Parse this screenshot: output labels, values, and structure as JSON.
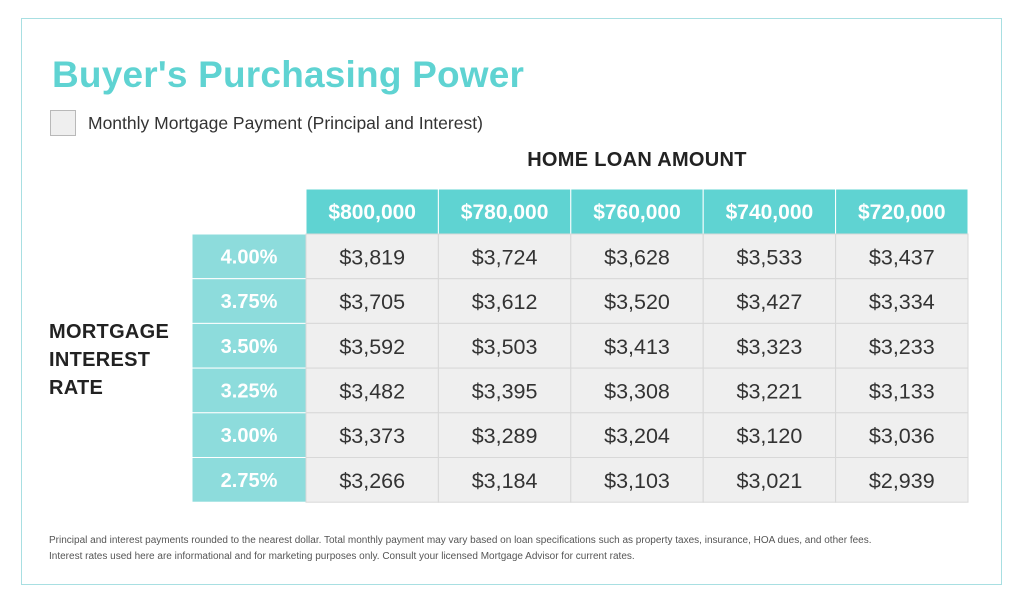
{
  "title": "Buyer's Purchasing Power",
  "legend_label": "Monthly Mortgage Payment (Principal and Interest)",
  "chart_data": {
    "type": "table",
    "column_axis_label": "HOME LOAN AMOUNT",
    "row_axis_label_lines": [
      "MORTGAGE",
      "INTEREST",
      "RATE"
    ],
    "columns": [
      "$800,000",
      "$780,000",
      "$760,000",
      "$740,000",
      "$720,000"
    ],
    "rows": [
      "4.00%",
      "3.75%",
      "3.50%",
      "3.25%",
      "3.00%",
      "2.75%"
    ],
    "values": [
      [
        "$3,819",
        "$3,724",
        "$3,628",
        "$3,533",
        "$3,437"
      ],
      [
        "$3,705",
        "$3,612",
        "$3,520",
        "$3,427",
        "$3,334"
      ],
      [
        "$3,592",
        "$3,503",
        "$3,413",
        "$3,323",
        "$3,233"
      ],
      [
        "$3,482",
        "$3,395",
        "$3,308",
        "$3,221",
        "$3,133"
      ],
      [
        "$3,373",
        "$3,289",
        "$3,204",
        "$3,120",
        "$3,036"
      ],
      [
        "$3,266",
        "$3,184",
        "$3,103",
        "$3,021",
        "$2,939"
      ]
    ]
  },
  "footnote_lines": [
    "Principal and interest payments rounded to the nearest dollar. Total monthly payment may vary based on loan specifications such as property taxes, insurance, HOA dues, and other fees.",
    "Interest rates used here are informational and for marketing purposes only. Consult your licensed Mortgage Advisor for current rates."
  ],
  "colors": {
    "accent": "#5fd3d2",
    "header_fill": "#5fd3d2",
    "rate_fill": "#8ddcdc",
    "cell_fill": "#efefef",
    "cell_border": "#d8d8d8"
  }
}
